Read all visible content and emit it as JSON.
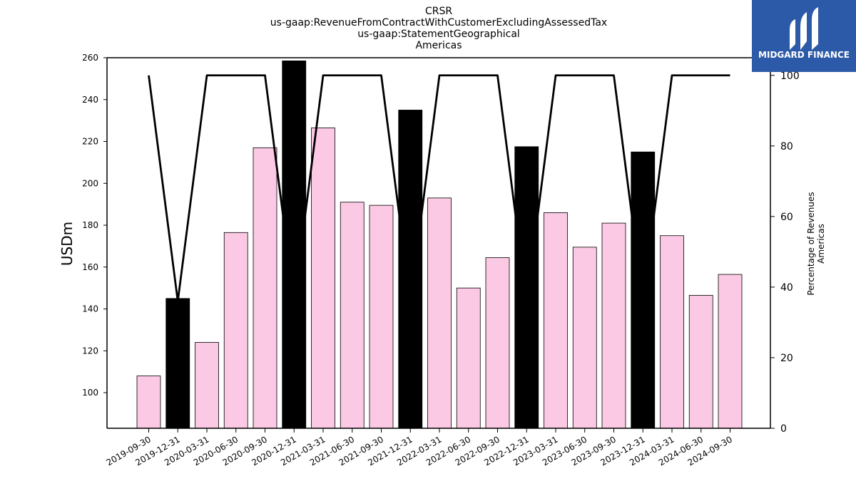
{
  "chart_data": {
    "type": "bar",
    "title_lines": [
      "CRSR",
      "us-gaap:RevenueFromContractWithCustomerExcludingAssessedTax",
      "us-gaap:StatementGeographical",
      "Americas"
    ],
    "ylabel": "USDm",
    "ylabel_right": [
      "Percentage of Revenues",
      "Americas"
    ],
    "categories": [
      "2019-09-30",
      "2019-12-31",
      "2020-03-31",
      "2020-06-30",
      "2020-09-30",
      "2020-12-31",
      "2021-03-31",
      "2021-06-30",
      "2021-09-30",
      "2021-12-31",
      "2022-03-31",
      "2022-06-30",
      "2022-09-30",
      "2022-12-31",
      "2023-03-31",
      "2023-06-30",
      "2023-09-30",
      "2023-12-31",
      "2024-03-31",
      "2024-06-30",
      "2024-09-30"
    ],
    "series": [
      {
        "axis": "left",
        "values": [
          108,
          145,
          124,
          176.5,
          217,
          258.5,
          226.5,
          191,
          189.5,
          235,
          193,
          150,
          164.5,
          217.5,
          186,
          169.5,
          181,
          215,
          175,
          146.5,
          156.5
        ],
        "colors": [
          "#fbc9e3",
          "#000000",
          "#fbc9e3",
          "#fbc9e3",
          "#fbc9e3",
          "#000000",
          "#fbc9e3",
          "#fbc9e3",
          "#fbc9e3",
          "#000000",
          "#fbc9e3",
          "#fbc9e3",
          "#fbc9e3",
          "#000000",
          "#fbc9e3",
          "#fbc9e3",
          "#fbc9e3",
          "#000000",
          "#fbc9e3",
          "#fbc9e3",
          "#fbc9e3"
        ]
      },
      {
        "axis": "right",
        "type": "line",
        "color": "#000000",
        "values": [
          100,
          36,
          100,
          100,
          100,
          36,
          100,
          100,
          100,
          36,
          100,
          100,
          100,
          36,
          100,
          100,
          100,
          36,
          100,
          100,
          100
        ]
      }
    ],
    "ylim": [
      83,
      260
    ],
    "yticks": [
      100,
      120,
      140,
      160,
      180,
      200,
      220,
      240,
      260
    ],
    "ylim_right": [
      0,
      105
    ],
    "yticks_right": [
      0,
      20,
      40,
      60,
      80,
      100
    ],
    "grid": false
  },
  "logo": {
    "text": "MIDGARD FINANCE",
    "bg_color": "#2d5aa8"
  }
}
